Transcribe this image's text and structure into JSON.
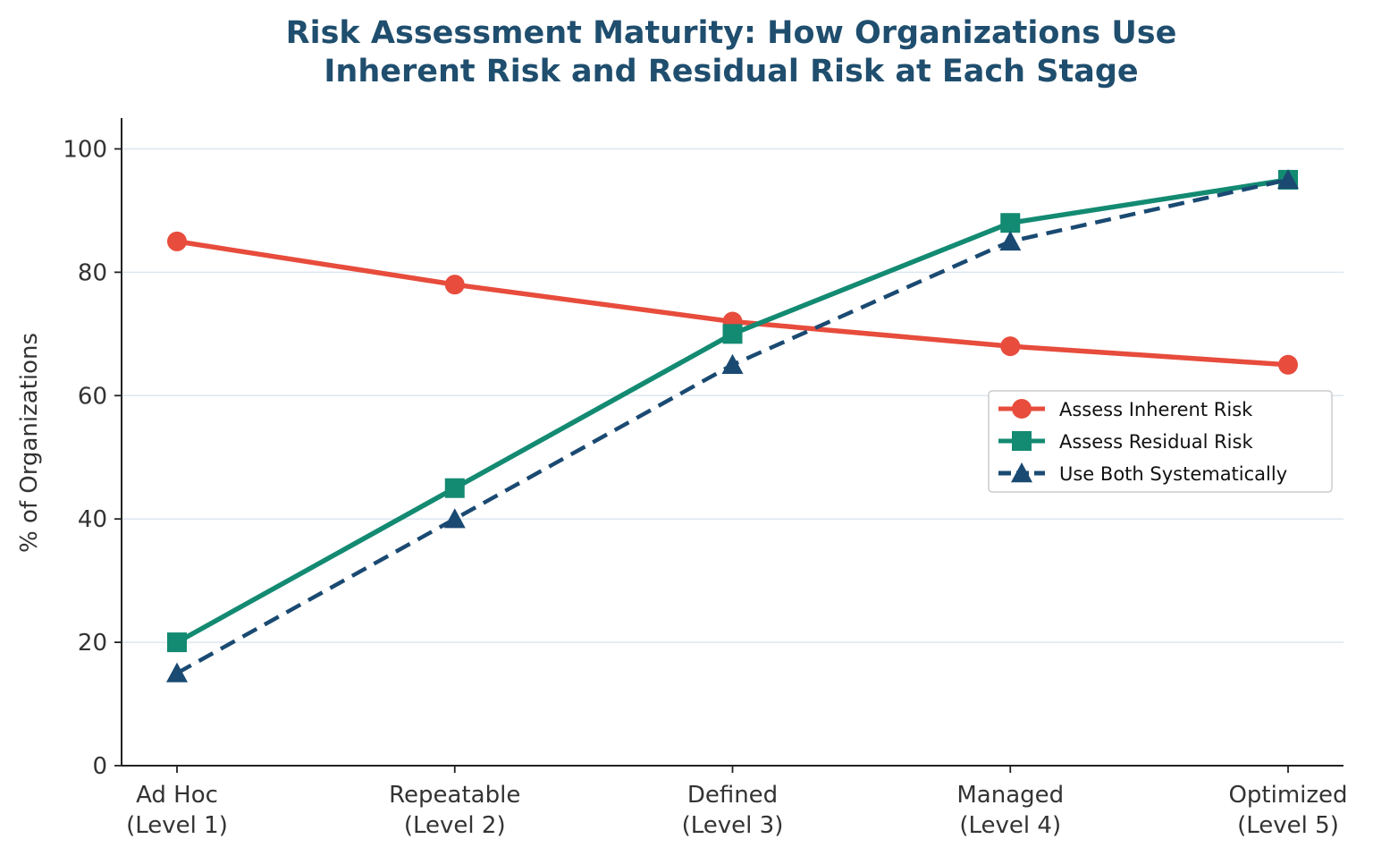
{
  "chart_data": {
    "type": "line",
    "title_lines": [
      "Risk Assessment Maturity: How Organizations Use",
      "Inherent Risk and Residual Risk at Each Stage"
    ],
    "xlabel": "",
    "ylabel": "% of Organizations",
    "categories": [
      [
        "Ad Hoc",
        "(Level 1)"
      ],
      [
        "Repeatable",
        "(Level 2)"
      ],
      [
        "Defined",
        "(Level 3)"
      ],
      [
        "Managed",
        "(Level 4)"
      ],
      [
        "Optimized",
        "(Level 5)"
      ]
    ],
    "ylim": [
      0,
      105
    ],
    "yticks": [
      0,
      20,
      40,
      60,
      80,
      100
    ],
    "grid": "horizontal",
    "legend_position": "center-right",
    "series": [
      {
        "name": "Assess Inherent Risk",
        "values": [
          85,
          78,
          72,
          68,
          65
        ],
        "color": "#e74c3c",
        "marker": "circle",
        "dash": "solid"
      },
      {
        "name": "Assess Residual Risk",
        "values": [
          20,
          45,
          70,
          88,
          95
        ],
        "color": "#138a72",
        "marker": "square",
        "dash": "solid"
      },
      {
        "name": "Use Both Systematically",
        "values": [
          15,
          40,
          65,
          85,
          95
        ],
        "color": "#1a4a72",
        "marker": "triangle",
        "dash": "dashed"
      }
    ]
  }
}
